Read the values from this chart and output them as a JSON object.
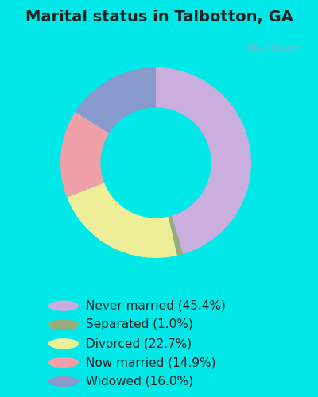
{
  "title": "Marital status in Talbotton, GA",
  "slices": [
    {
      "label": "Never married (45.4%)",
      "value": 45.4,
      "color": "#c9aede"
    },
    {
      "label": "Separated (1.0%)",
      "value": 1.0,
      "color": "#9aab7a"
    },
    {
      "label": "Divorced (22.7%)",
      "value": 22.7,
      "color": "#eeee99"
    },
    {
      "label": "Now married (14.9%)",
      "value": 14.9,
      "color": "#f0a0a8"
    },
    {
      "label": "Widowed (16.0%)",
      "value": 16.0,
      "color": "#8899cc"
    }
  ],
  "bg_color_outer": "#00e8e8",
  "bg_color_panel": "#d8eedd",
  "watermark": "City-Data.com",
  "title_fontsize": 14,
  "legend_fontsize": 11,
  "title_color": "#222222",
  "legend_text_color": "#222222"
}
